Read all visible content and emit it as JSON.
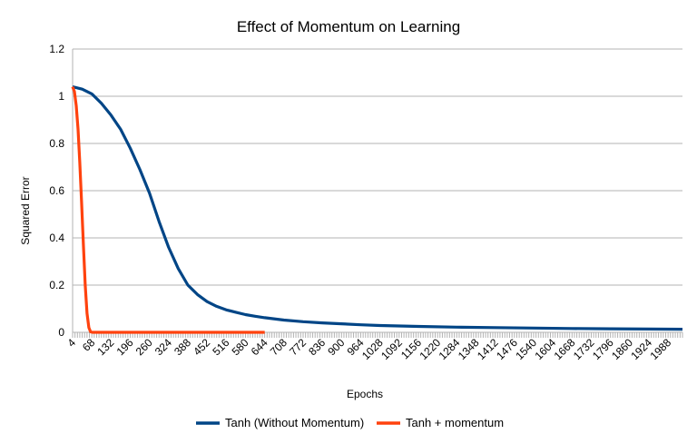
{
  "chart_data": {
    "type": "line",
    "title": "Effect of Momentum on Learning",
    "xlabel": "Epochs",
    "ylabel": "Squared Error",
    "ylim": [
      0,
      1.2
    ],
    "yticks": [
      "0",
      "0.2",
      "0.4",
      "0.6",
      "0.8",
      "1",
      "1.2"
    ],
    "xlim": [
      4,
      2036
    ],
    "xtick_labels": [
      "4",
      "68",
      "132",
      "196",
      "260",
      "324",
      "388",
      "452",
      "516",
      "580",
      "644",
      "708",
      "772",
      "836",
      "900",
      "964",
      "1028",
      "1092",
      "1156",
      "1220",
      "1284",
      "1348",
      "1412",
      "1476",
      "1540",
      "1604",
      "1668",
      "1732",
      "1796",
      "1860",
      "1924",
      "1988"
    ],
    "grid": "horizontal",
    "legend_position": "bottom",
    "series": [
      {
        "name": "Tanh (Without Momentum)",
        "color": "#004586",
        "x": [
          4,
          36,
          68,
          100,
          132,
          164,
          196,
          228,
          260,
          292,
          324,
          356,
          388,
          420,
          452,
          484,
          516,
          548,
          580,
          612,
          644,
          708,
          772,
          836,
          900,
          964,
          1028,
          1156,
          1284,
          1412,
          1540,
          1668,
          1796,
          1924,
          2036
        ],
        "y": [
          1.04,
          1.03,
          1.01,
          0.97,
          0.92,
          0.86,
          0.78,
          0.69,
          0.59,
          0.47,
          0.36,
          0.27,
          0.2,
          0.16,
          0.13,
          0.11,
          0.095,
          0.085,
          0.075,
          0.068,
          0.062,
          0.052,
          0.045,
          0.04,
          0.036,
          0.032,
          0.029,
          0.025,
          0.022,
          0.02,
          0.018,
          0.016,
          0.015,
          0.014,
          0.013
        ]
      },
      {
        "name": "Tanh + momentum",
        "color": "#ff420e",
        "x": [
          4,
          10,
          16,
          22,
          28,
          34,
          40,
          46,
          52,
          58,
          64,
          70,
          100,
          200,
          300,
          400,
          500,
          600,
          644
        ],
        "y": [
          1.04,
          1.02,
          0.96,
          0.86,
          0.72,
          0.55,
          0.37,
          0.2,
          0.08,
          0.02,
          0.002,
          0,
          0,
          0,
          0,
          0,
          0,
          0,
          0
        ]
      }
    ]
  }
}
